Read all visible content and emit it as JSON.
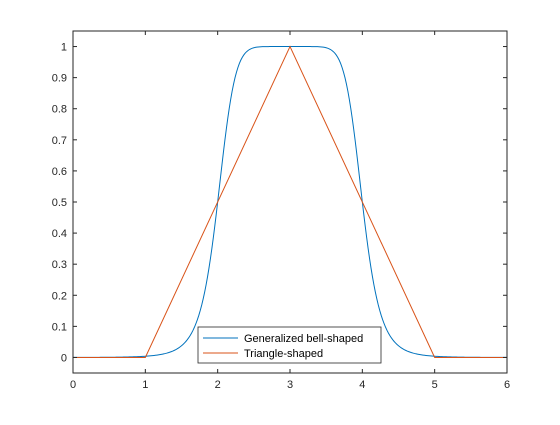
{
  "chart_data": {
    "type": "line",
    "title": "",
    "xlabel": "",
    "ylabel": "",
    "xlim": [
      0,
      6
    ],
    "ylim": [
      -0.05,
      1.05
    ],
    "xticks": [
      "0",
      "1",
      "2",
      "3",
      "4",
      "5",
      "6"
    ],
    "yticks": [
      "0",
      "0.1",
      "0.2",
      "0.3",
      "0.4",
      "0.5",
      "0.6",
      "0.7",
      "0.8",
      "0.9",
      "1"
    ],
    "grid": false,
    "legend_position": "bottom-center",
    "series": [
      {
        "name": "Generalized bell-shaped",
        "color": "#0072bd",
        "function": "generalized-bell",
        "params": {
          "a": 1,
          "b": 4,
          "c": 3
        }
      },
      {
        "name": "Triangle-shaped",
        "color": "#d95319",
        "x": [
          0,
          1,
          3,
          5,
          6
        ],
        "y": [
          0,
          0,
          1,
          0,
          0
        ]
      }
    ]
  }
}
